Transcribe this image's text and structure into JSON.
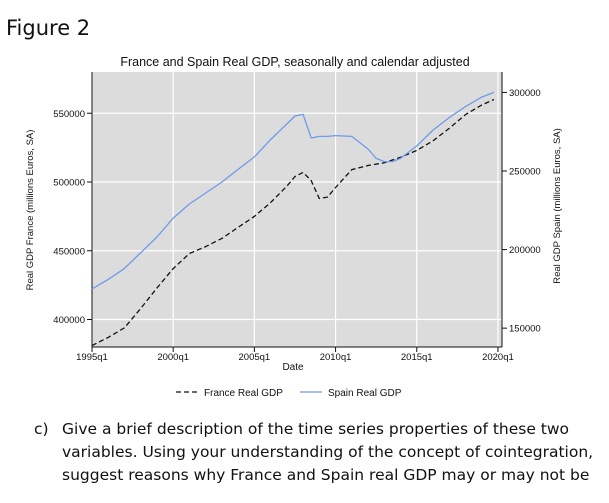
{
  "figure_heading": "Figure 2",
  "question": {
    "letter": "c)",
    "text": "Give a brief description of the time series properties of these two variables. Using your understanding of the concept of cointegration, suggest reasons why France and Spain real GDP may or may not be"
  },
  "chart_data": {
    "type": "line",
    "title": "France and Spain Real GDP, seasonally and calendar adjusted",
    "xlabel": "Date",
    "ylabel_left": "Real GDP France (millions Euros, SA)",
    "ylabel_right": "Real GDP Spain (millions Euros, SA)",
    "x_ticks": [
      "1995q1",
      "2000q1",
      "2005q1",
      "2010q1",
      "2015q1",
      "2020q1"
    ],
    "x_tick_years": [
      1995,
      2000,
      2005,
      2010,
      2015,
      2020
    ],
    "xlim": [
      1995,
      2020.25
    ],
    "y_left_ticks": [
      400000,
      450000,
      500000,
      550000
    ],
    "y_left_tick_labels": [
      "400000",
      "450000",
      "500000",
      "550000"
    ],
    "y_left_lim": [
      380000,
      580000
    ],
    "y_right_ticks": [
      150000,
      200000,
      250000,
      300000
    ],
    "y_right_tick_labels": [
      "150000",
      "200000",
      "250000",
      "300000"
    ],
    "y_right_lim": [
      138000,
      313000
    ],
    "grid": true,
    "legend_position": "bottom",
    "colors": {
      "plot_bg": "#dcdcdc",
      "france": "#111111",
      "spain": "#6e9bea",
      "grid": "#ffffff"
    },
    "series": [
      {
        "name": "France Real GDP",
        "axis": "left",
        "style": "dashed",
        "x": [
          1995,
          1996,
          1997,
          1998,
          1999,
          2000,
          2001,
          2002,
          2003,
          2004,
          2005,
          2006,
          2007,
          2007.5,
          2008,
          2008.5,
          2009,
          2009.5,
          2010,
          2011,
          2012,
          2013,
          2014,
          2015,
          2016,
          2017,
          2018,
          2019,
          2019.75
        ],
        "y": [
          381000,
          387000,
          394000,
          408000,
          423000,
          437000,
          448000,
          453000,
          459000,
          467000,
          475000,
          485000,
          497000,
          504000,
          507000,
          501000,
          488000,
          489000,
          496000,
          509000,
          512000,
          514000,
          518000,
          523000,
          530000,
          539000,
          549000,
          556000,
          560000
        ]
      },
      {
        "name": "Spain Real GDP",
        "axis": "right",
        "style": "solid",
        "x": [
          1995,
          1996,
          1997,
          1998,
          1999,
          2000,
          2001,
          2002,
          2003,
          2004,
          2005,
          2006,
          2007,
          2007.5,
          2008,
          2008.5,
          2009,
          2009.5,
          2010,
          2011,
          2012,
          2012.5,
          2013,
          2013.5,
          2014,
          2015,
          2016,
          2017,
          2018,
          2019,
          2019.75
        ],
        "y": [
          175000,
          181000,
          188000,
          198000,
          208000,
          220000,
          229000,
          236000,
          243000,
          251000,
          259000,
          270000,
          280000,
          285000,
          286000,
          271000,
          272000,
          272000,
          272500,
          272000,
          264000,
          258000,
          256000,
          256000,
          258000,
          266000,
          276000,
          284000,
          291000,
          297000,
          300000
        ]
      }
    ]
  }
}
